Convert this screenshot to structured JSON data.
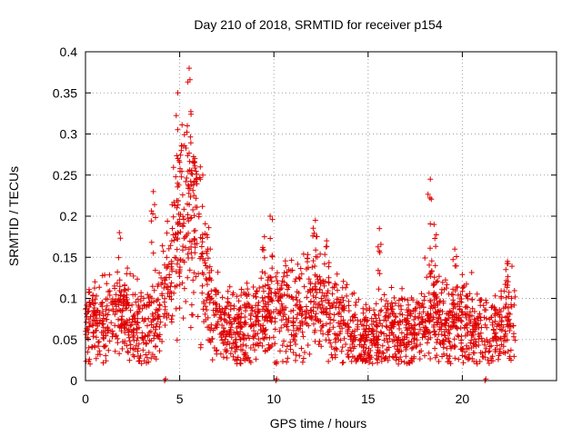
{
  "chart_data": {
    "type": "scatter",
    "title": "Day 210 of 2018, SRMTID for receiver p154",
    "xlabel": "GPS time / hours",
    "ylabel": "SRMTID / TECUs",
    "xlim": [
      0,
      25
    ],
    "ylim": [
      0,
      0.4
    ],
    "xticks": [
      0,
      5,
      10,
      15,
      20
    ],
    "xtick_labels": [
      "0",
      "5",
      "10",
      "15",
      "20"
    ],
    "yticks": [
      0,
      0.05,
      0.1,
      0.15,
      0.2,
      0.25,
      0.3,
      0.35,
      0.4
    ],
    "ytick_labels": [
      "0",
      "0.05",
      "0.1",
      "0.15",
      "0.2",
      "0.25",
      "0.3",
      "0.35",
      "0.4"
    ],
    "grid": true,
    "marker": "+",
    "color": "#e00000",
    "data_span_hours": [
      0,
      22.8
    ],
    "baseline_zero_points": [
      4.2,
      10.1,
      21.2
    ],
    "trend": {
      "x": [
        0,
        0.5,
        1,
        1.5,
        2,
        2.5,
        3,
        3.5,
        4,
        4.3,
        4.6,
        5,
        5.3,
        5.6,
        6,
        6.3,
        6.6,
        7,
        7.5,
        8,
        8.5,
        9,
        9.5,
        10,
        10.5,
        11,
        11.5,
        12,
        12.5,
        13,
        13.5,
        14,
        14.5,
        15,
        15.5,
        16,
        16.5,
        17,
        17.5,
        18,
        18.5,
        19,
        19.5,
        20,
        20.5,
        21,
        21.5,
        22,
        22.5,
        22.8
      ],
      "y": [
        0.065,
        0.07,
        0.075,
        0.085,
        0.08,
        0.07,
        0.065,
        0.075,
        0.09,
        0.11,
        0.14,
        0.19,
        0.21,
        0.205,
        0.18,
        0.14,
        0.1,
        0.075,
        0.065,
        0.06,
        0.065,
        0.07,
        0.075,
        0.085,
        0.09,
        0.08,
        0.085,
        0.095,
        0.09,
        0.08,
        0.075,
        0.065,
        0.055,
        0.05,
        0.055,
        0.06,
        0.06,
        0.058,
        0.065,
        0.075,
        0.08,
        0.07,
        0.068,
        0.07,
        0.065,
        0.06,
        0.055,
        0.06,
        0.07,
        0.075
      ]
    },
    "spikes": [
      {
        "x": 1.8,
        "y": 0.18
      },
      {
        "x": 3.6,
        "y": 0.23
      },
      {
        "x": 4.9,
        "y": 0.35
      },
      {
        "x": 5.5,
        "y": 0.38
      },
      {
        "x": 5.8,
        "y": 0.27
      },
      {
        "x": 9.5,
        "y": 0.175
      },
      {
        "x": 9.8,
        "y": 0.2
      },
      {
        "x": 12.2,
        "y": 0.195
      },
      {
        "x": 12.8,
        "y": 0.17
      },
      {
        "x": 15.6,
        "y": 0.185
      },
      {
        "x": 18.3,
        "y": 0.245
      },
      {
        "x": 18.5,
        "y": 0.19
      },
      {
        "x": 19.6,
        "y": 0.16
      },
      {
        "x": 22.4,
        "y": 0.145
      }
    ]
  }
}
